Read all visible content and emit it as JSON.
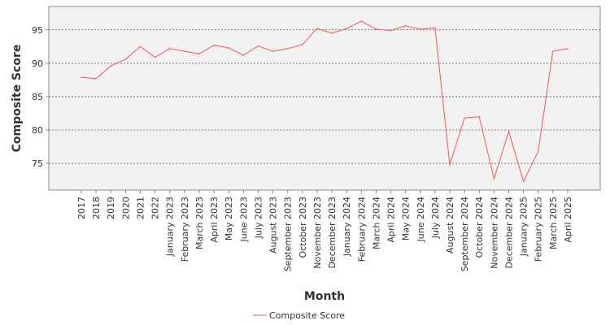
{
  "chart_data": {
    "type": "line",
    "xlabel": "Month",
    "ylabel": "Composite Score",
    "ylim": [
      71,
      98.5
    ],
    "yticks": [
      75,
      80,
      85,
      90,
      95
    ],
    "grid": true,
    "legend_position": "bottom",
    "categories": [
      "2017",
      "2018",
      "2019",
      "2020",
      "2021",
      "2022",
      "January 2023",
      "February 2023",
      "March 2023",
      "April 2023",
      "May 2023",
      "June 2023",
      "July 2023",
      "August 2023",
      "September 2023",
      "October 2023",
      "November 2023",
      "December 2023",
      "January 2024",
      "February 2024",
      "March 2024",
      "April 2024",
      "May 2024",
      "June 2024",
      "July 2024",
      "August 2024",
      "September 2024",
      "October 2024",
      "November 2024",
      "December 2024",
      "January 2025",
      "February 2025",
      "March 2025",
      "April 2025"
    ],
    "series": [
      {
        "name": "Composite Score",
        "color": "#ff5555",
        "values": [
          87.9,
          87.7,
          89.6,
          90.6,
          92.5,
          90.9,
          92.2,
          91.8,
          91.4,
          92.7,
          92.3,
          91.2,
          92.6,
          91.8,
          92.2,
          92.8,
          95.2,
          94.5,
          95.2,
          96.3,
          95.1,
          94.9,
          95.6,
          95.1,
          95.3,
          74.8,
          81.8,
          82.0,
          72.7,
          79.8,
          72.3,
          76.8,
          91.8,
          92.2
        ]
      }
    ]
  }
}
